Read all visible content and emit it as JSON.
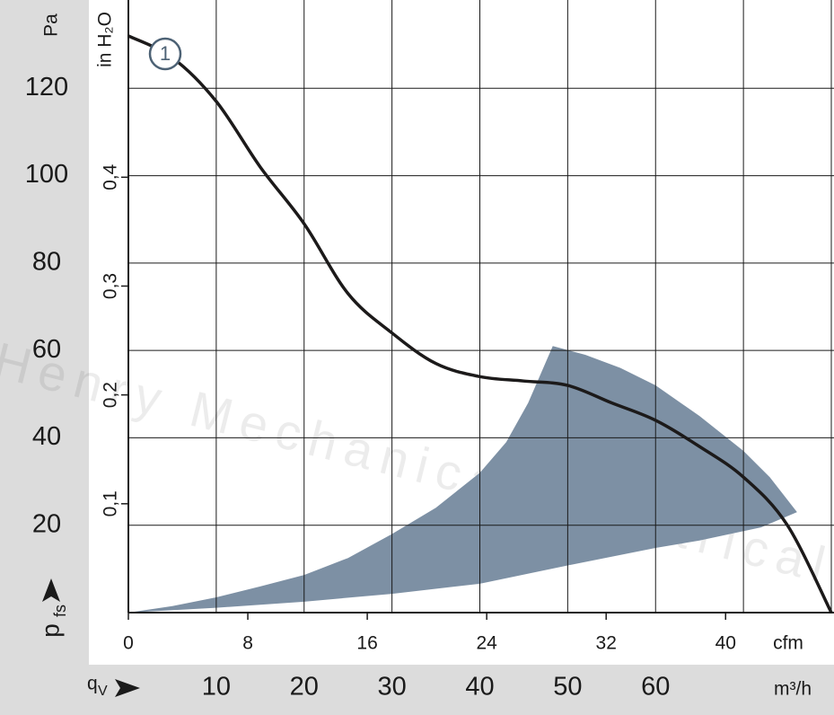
{
  "chart_data": {
    "type": "line",
    "ylabel": "Pa",
    "y2label": "in H₂O",
    "x2label": "cfm",
    "xlabel": "m³/h",
    "xsymbol": {
      "symbol": "q",
      "subscript": "V"
    },
    "ysymbol": {
      "symbol": "p",
      "subscript": "fs"
    },
    "curve_label": "1",
    "watermark": "Henry Mechanical Electrical",
    "xlim": [
      0,
      80
    ],
    "xticks": [
      10,
      20,
      30,
      40,
      50,
      60
    ],
    "xgrid": [
      0,
      10,
      20,
      30,
      40,
      50,
      60,
      70,
      80
    ],
    "ylim": [
      0,
      140
    ],
    "yticks": [
      20,
      40,
      60,
      80,
      100,
      120
    ],
    "ygrid": [
      0,
      20,
      40,
      60,
      80,
      100,
      120
    ],
    "x2lim": [
      0,
      47.08
    ],
    "x2ticks": [
      0,
      8,
      16,
      24,
      32,
      40
    ],
    "y2lim": [
      0,
      0.562
    ],
    "y2ticks": [
      {
        "value": 0.1,
        "label": "0,1"
      },
      {
        "value": 0.2,
        "label": "0,2"
      },
      {
        "value": 0.3,
        "label": "0,3"
      },
      {
        "value": 0.4,
        "label": "0,4"
      }
    ],
    "series": [
      {
        "color": "#1c1a1a",
        "x": [
          0,
          5,
          10,
          15,
          20,
          25,
          30,
          35,
          40,
          45,
          50,
          55,
          60,
          65,
          70,
          75,
          80
        ],
        "values": [
          132,
          127,
          117,
          102,
          89,
          73,
          64,
          57,
          54,
          53,
          52,
          48,
          44,
          38,
          31,
          20,
          0
        ]
      }
    ],
    "region": {
      "color": "#7d90a4",
      "x": [
        0,
        5,
        10,
        15,
        20,
        25,
        30,
        35,
        40,
        43,
        45.5,
        48.3,
        52,
        56,
        60,
        65,
        70,
        73,
        76.1,
        72,
        65,
        60,
        50,
        40,
        30,
        20,
        10,
        0
      ],
      "values": [
        0,
        1.5,
        3.5,
        6,
        8.6,
        12.5,
        18,
        24,
        32,
        39,
        48,
        61,
        59,
        56,
        52,
        45,
        37,
        31,
        23,
        19.5,
        16.5,
        14.8,
        10.8,
        6.6,
        4.3,
        2.5,
        1.1,
        0
      ]
    }
  }
}
